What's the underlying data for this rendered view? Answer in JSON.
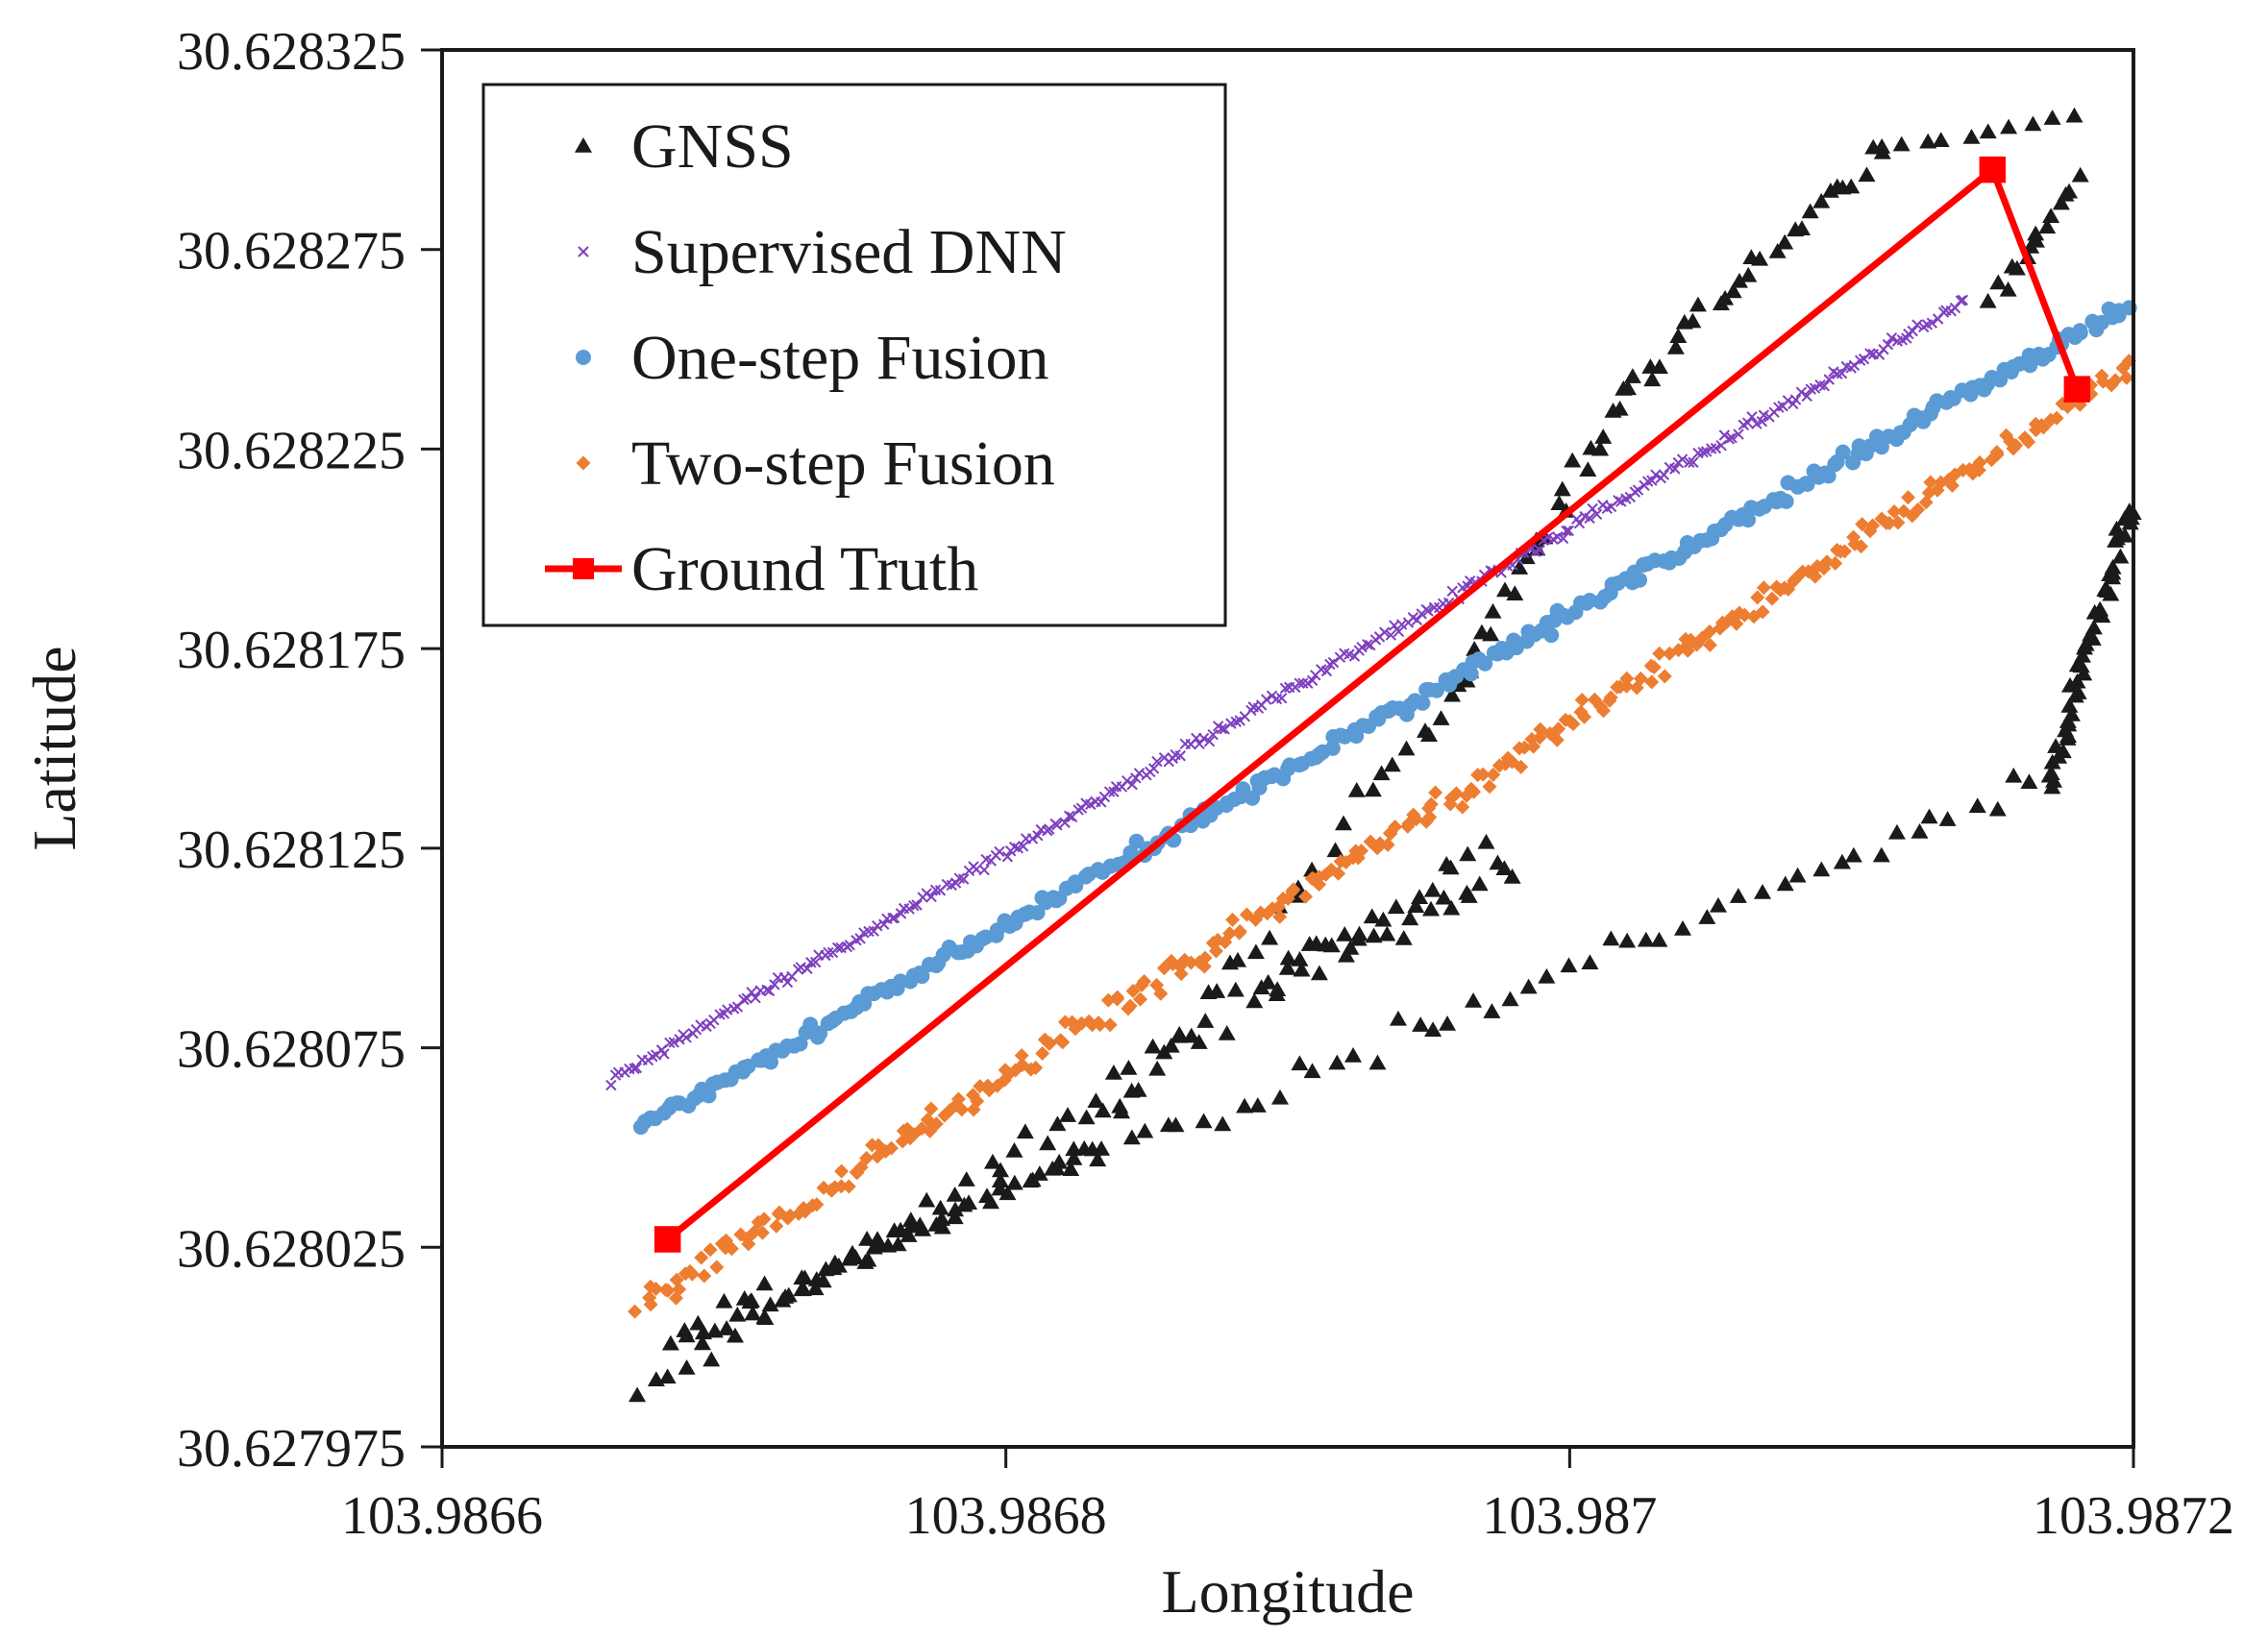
{
  "chart_data": {
    "type": "scatter",
    "title": "",
    "xlabel": "Longitude",
    "ylabel": "Latitude",
    "xlim": [
      103.9866,
      103.9872
    ],
    "ylim": [
      30.627975,
      30.628325
    ],
    "xticks": [
      103.9866,
      103.9868,
      103.987,
      103.9872
    ],
    "xtick_labels": [
      "103.9866",
      "103.9868",
      "103.987",
      "103.9872"
    ],
    "yticks": [
      30.627975,
      30.628025,
      30.628075,
      30.628125,
      30.628175,
      30.628225,
      30.628275,
      30.628325
    ],
    "ytick_labels": [
      "30.627975",
      "30.628025",
      "30.628075",
      "30.628125",
      "30.628175",
      "30.628225",
      "30.628275",
      "30.628325"
    ],
    "grid": false,
    "legend_position": "top-left",
    "series": [
      {
        "name": "GNSS",
        "marker": "triangle",
        "color": "#1a1a1a",
        "segments": [
          {
            "x0": 103.98667,
            "y0": 30.627988,
            "x1": 103.98697,
            "y1": 30.628125,
            "n": 60,
            "jitter_x": 4e-06,
            "jitter_y": 6e-06
          },
          {
            "x0": 103.98668,
            "y0": 30.628,
            "x1": 103.98683,
            "y1": 30.62805,
            "n": 40,
            "jitter_x": 5e-06,
            "jitter_y": 5e-06
          },
          {
            "x0": 103.98683,
            "y0": 30.62805,
            "x1": 103.98696,
            "y1": 30.628165,
            "n": 30,
            "jitter_x": 4e-06,
            "jitter_y": 8e-06
          },
          {
            "x0": 103.98696,
            "y0": 30.628165,
            "x1": 103.98702,
            "y1": 30.62824,
            "n": 25,
            "jitter_x": 3e-06,
            "jitter_y": 5e-06
          },
          {
            "x0": 103.98702,
            "y0": 30.62824,
            "x1": 103.98711,
            "y1": 30.6283,
            "n": 30,
            "jitter_x": 4e-06,
            "jitter_y": 4e-06
          },
          {
            "x0": 103.98711,
            "y0": 30.6283,
            "x1": 103.98718,
            "y1": 30.628308,
            "n": 10,
            "jitter_x": 3e-06,
            "jitter_y": 2e-06
          },
          {
            "x0": 103.98715,
            "y0": 30.628262,
            "x1": 103.98718,
            "y1": 30.628292,
            "n": 15,
            "jitter_x": 3e-06,
            "jitter_y": 4e-06
          },
          {
            "x0": 103.9867,
            "y0": 30.62801,
            "x1": 103.98717,
            "y1": 30.628142,
            "n": 70,
            "jitter_x": 4e-06,
            "jitter_y": 6e-06
          },
          {
            "x0": 103.98717,
            "y0": 30.628142,
            "x1": 103.9872,
            "y1": 30.628213,
            "n": 50,
            "jitter_x": 3e-06,
            "jitter_y": 6e-06
          },
          {
            "x0": 103.98689,
            "y0": 30.62809,
            "x1": 103.98698,
            "y1": 30.62812,
            "n": 25,
            "jitter_x": 4e-06,
            "jitter_y": 6e-06
          }
        ]
      },
      {
        "name": "Supervised DNN",
        "marker": "x",
        "color": "#7e3fbf",
        "segments": [
          {
            "x0": 103.98666,
            "y0": 30.628067,
            "x1": 103.98714,
            "y1": 30.628262,
            "n": 300,
            "jitter_x": 1e-06,
            "jitter_y": 2e-06
          }
        ]
      },
      {
        "name": "One-step Fusion",
        "marker": "circle",
        "color": "#5b9bd5",
        "segments": [
          {
            "x0": 103.98667,
            "y0": 30.628055,
            "x1": 103.9872,
            "y1": 30.628262,
            "n": 280,
            "jitter_x": 2e-06,
            "jitter_y": 3e-06
          }
        ]
      },
      {
        "name": "Two-step Fusion",
        "marker": "diamond",
        "color": "#ed7d31",
        "segments": [
          {
            "x0": 103.98667,
            "y0": 30.62801,
            "x1": 103.98721,
            "y1": 30.62825,
            "n": 320,
            "jitter_x": 3e-06,
            "jitter_y": 5e-06
          }
        ]
      },
      {
        "name": "Ground Truth",
        "marker": "square-line",
        "color": "#ff0000",
        "x": [
          103.98668,
          103.98715,
          103.98718
        ],
        "y": [
          30.628027,
          30.628295,
          30.62824
        ]
      }
    ]
  }
}
